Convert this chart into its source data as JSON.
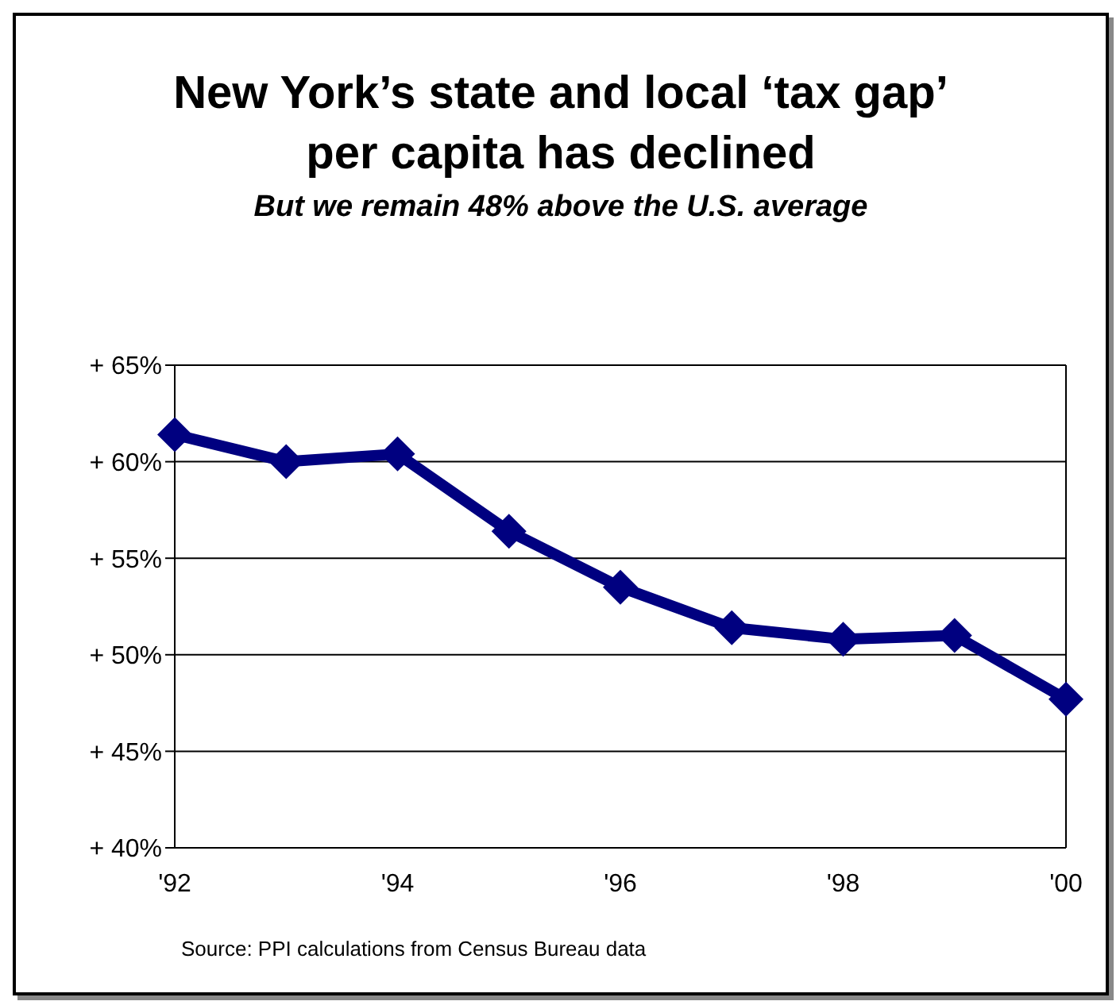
{
  "chart_data": {
    "type": "line",
    "title": "New York’s state and local ‘tax gap’ per capita has declined",
    "subtitle": "But we remain 48% above the U.S. average",
    "categories": [
      "'92",
      null,
      "'94",
      null,
      "'96",
      null,
      "'98",
      null,
      "'00"
    ],
    "values": [
      61.4,
      60.0,
      60.4,
      56.4,
      53.5,
      51.4,
      50.8,
      51.0,
      47.7
    ],
    "color": "#000080",
    "marker": "diamond",
    "line_style": "solid",
    "ylim": [
      40,
      65
    ],
    "yticks": [
      {
        "value": 40,
        "label": "+ 40%"
      },
      {
        "value": 45,
        "label": "+ 45%"
      },
      {
        "value": 50,
        "label": "+ 50%"
      },
      {
        "value": 55,
        "label": "+ 55%"
      },
      {
        "value": 60,
        "label": "+ 60%"
      },
      {
        "value": 65,
        "label": "+ 65%"
      }
    ],
    "grid": "y",
    "annotations": [
      "Source: PPI calculations from Census Bureau data"
    ]
  }
}
